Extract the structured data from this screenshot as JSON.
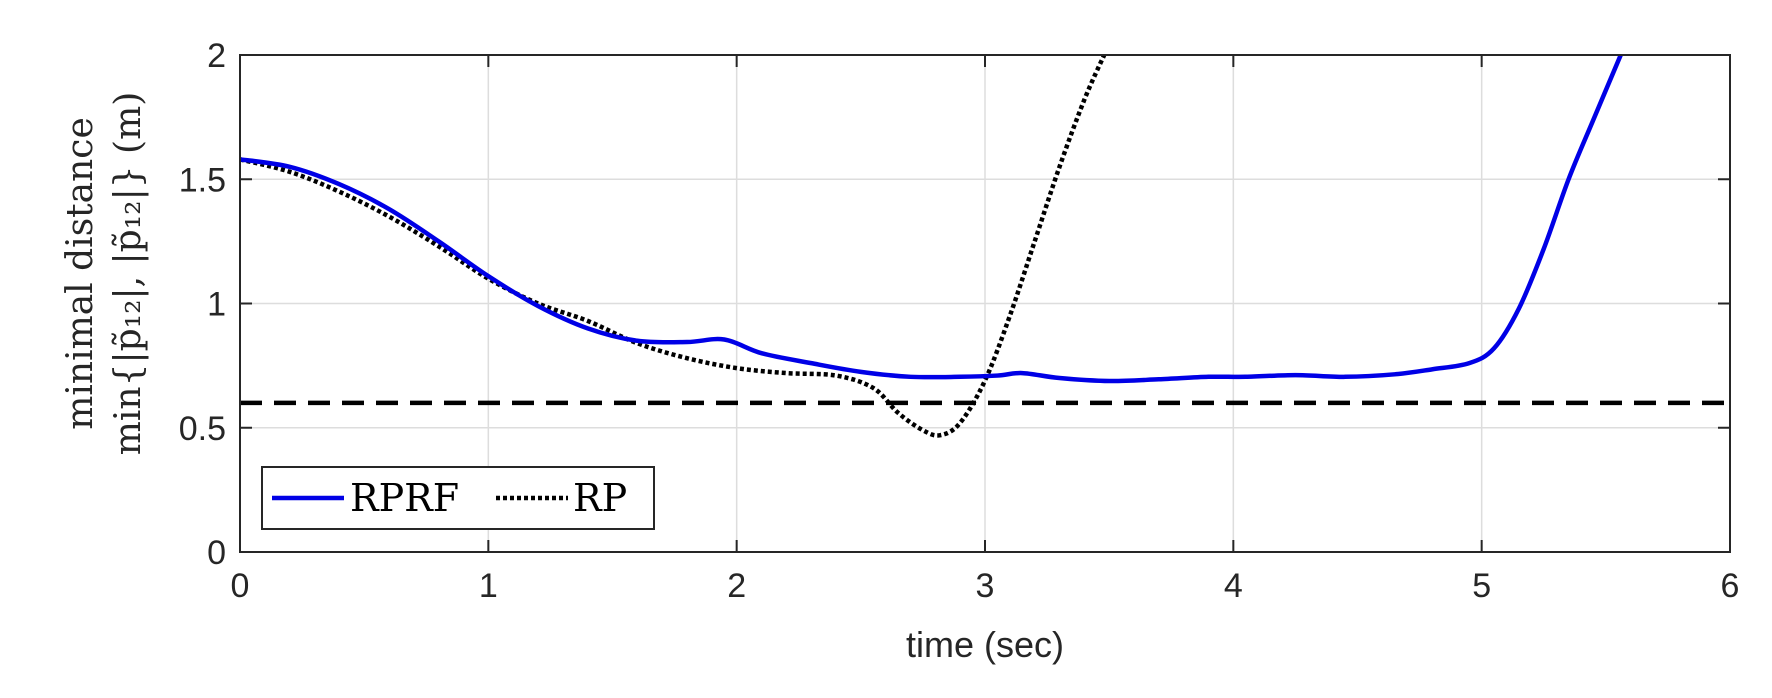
{
  "chart_data": {
    "type": "line",
    "xlabel": "time (sec)",
    "ylabel": [
      "minimal distance",
      "min{|p̃₁₂|, |p̃₁₂|} (m)"
    ],
    "xlim": [
      0,
      6
    ],
    "ylim": [
      0,
      2
    ],
    "xticks": [
      "0",
      "1",
      "2",
      "3",
      "4",
      "5",
      "6"
    ],
    "yticks": [
      "0",
      "0.5",
      "1",
      "1.5",
      "2"
    ],
    "grid": true,
    "legend_position": "bottom-left",
    "threshold": {
      "y": 0.6,
      "style": "dashed",
      "color": "#000000"
    },
    "series": [
      {
        "name": "RPRF",
        "color": "#0000e6",
        "style": "solid",
        "x": [
          0,
          0.2,
          0.4,
          0.6,
          0.8,
          1.0,
          1.2,
          1.4,
          1.6,
          1.8,
          1.95,
          2.1,
          2.3,
          2.5,
          2.7,
          2.9,
          3.05,
          3.15,
          3.3,
          3.5,
          3.7,
          3.9,
          4.05,
          4.25,
          4.45,
          4.65,
          4.8,
          4.95,
          5.05,
          5.15,
          5.25,
          5.35,
          5.45,
          5.56
        ],
        "y": [
          1.58,
          1.55,
          1.48,
          1.38,
          1.25,
          1.11,
          0.99,
          0.9,
          0.85,
          0.845,
          0.855,
          0.8,
          0.76,
          0.725,
          0.705,
          0.705,
          0.71,
          0.72,
          0.7,
          0.688,
          0.695,
          0.705,
          0.705,
          0.712,
          0.705,
          0.715,
          0.735,
          0.76,
          0.82,
          0.98,
          1.22,
          1.5,
          1.74,
          2.0
        ]
      },
      {
        "name": "RP",
        "color": "#000000",
        "style": "dotted",
        "x": [
          0,
          0.2,
          0.4,
          0.6,
          0.8,
          1.0,
          1.2,
          1.4,
          1.6,
          1.8,
          2.0,
          2.2,
          2.4,
          2.55,
          2.65,
          2.75,
          2.82,
          2.9,
          3.0,
          3.1,
          3.2,
          3.3,
          3.4,
          3.48
        ],
        "y": [
          1.58,
          1.53,
          1.45,
          1.35,
          1.23,
          1.1,
          1.0,
          0.93,
          0.84,
          0.78,
          0.74,
          0.72,
          0.71,
          0.66,
          0.56,
          0.49,
          0.47,
          0.52,
          0.69,
          0.95,
          1.25,
          1.55,
          1.82,
          2.0
        ]
      }
    ]
  }
}
